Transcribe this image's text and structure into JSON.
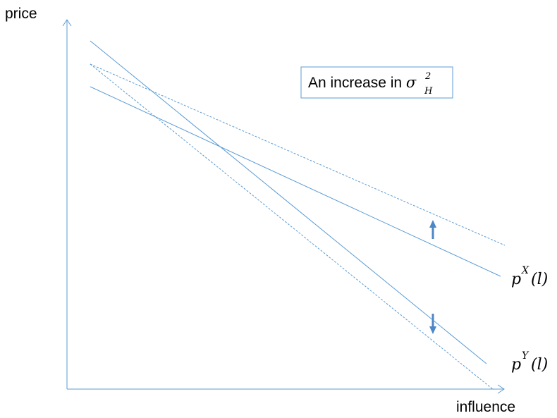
{
  "axes": {
    "y_label": "price",
    "x_label": "influence"
  },
  "annotation": {
    "text": "An increase in ",
    "symbol": "σ",
    "superscript": "2",
    "subscript": "H"
  },
  "curves": {
    "px": {
      "base": "p",
      "sup": "X",
      "arg": "(l)"
    },
    "py": {
      "base": "p",
      "sup": "Y",
      "arg": "(l)"
    }
  },
  "colors": {
    "line": "#5b9bd5",
    "arrow": "#4f86c6",
    "text": "#000000"
  }
}
